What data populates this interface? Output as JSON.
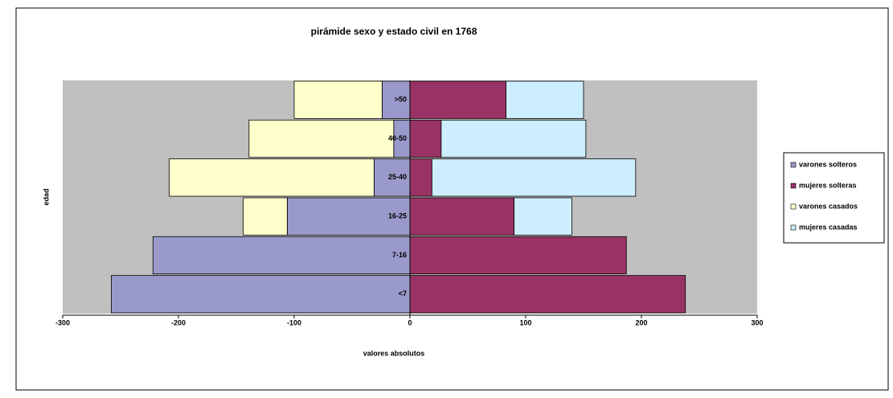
{
  "chart_data": {
    "type": "bar",
    "orientation": "horizontal",
    "stacked": true,
    "title": "pirámide sexo y estado civil en 1768",
    "x_label": "valores absolutos",
    "y_label": "edad",
    "categories": [
      "<7",
      "7-16",
      "16-25",
      "25-40",
      "40-50",
      ">50"
    ],
    "series": [
      {
        "name": "varones solteros",
        "color": "#9999cc",
        "values": [
          -258,
          -222,
          -106,
          -31,
          -14,
          -24
        ]
      },
      {
        "name": "mujeres solteras",
        "color": "#993366",
        "values": [
          238,
          187,
          90,
          19,
          27,
          83
        ]
      },
      {
        "name": "varones casados",
        "color": "#ffffcc",
        "values": [
          0,
          0,
          -38,
          -177,
          -125,
          -76
        ]
      },
      {
        "name": "mujeres casadas",
        "color": "#cceeff",
        "values": [
          0,
          0,
          50,
          176,
          125,
          67
        ]
      }
    ],
    "xlim": [
      -300,
      300
    ],
    "xticks": [
      -300,
      -200,
      -100,
      0,
      100,
      200,
      300
    ],
    "plot_background": "#c0c0c0"
  }
}
